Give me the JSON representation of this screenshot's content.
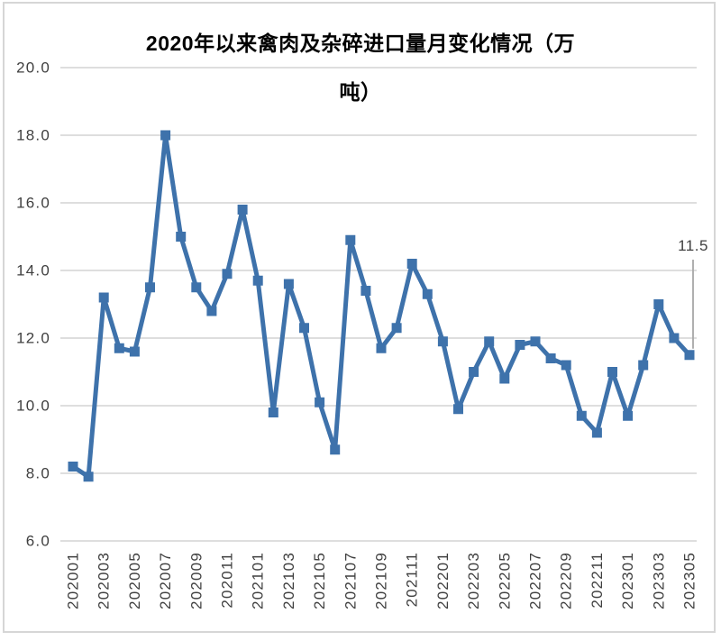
{
  "chart": {
    "title_line1": "2020年以来禽肉及杂碎进口量月变化情况（万",
    "title_line2": "吨）"
  },
  "chart_data": {
    "type": "line",
    "title": "2020年以来禽肉及杂碎进口量月变化情况（万吨）",
    "categories": [
      "202001",
      "202002",
      "202003",
      "202004",
      "202005",
      "202006",
      "202007",
      "202008",
      "202009",
      "202010",
      "202011",
      "202012",
      "202101",
      "202102",
      "202103",
      "202104",
      "202105",
      "202106",
      "202107",
      "202108",
      "202109",
      "202110",
      "202111",
      "202112",
      "202201",
      "202202",
      "202203",
      "202204",
      "202205",
      "202206",
      "202207",
      "202208",
      "202209",
      "202210",
      "202211",
      "202212",
      "202301",
      "202302",
      "202303",
      "202304",
      "202305"
    ],
    "values": [
      8.2,
      7.9,
      13.2,
      11.7,
      11.6,
      13.5,
      18.0,
      15.0,
      13.5,
      12.8,
      13.9,
      15.8,
      13.7,
      9.8,
      13.6,
      12.3,
      10.1,
      8.7,
      14.9,
      13.4,
      11.7,
      12.3,
      14.2,
      13.3,
      11.9,
      9.9,
      11.0,
      11.9,
      10.8,
      11.8,
      11.9,
      11.4,
      11.2,
      9.7,
      9.2,
      11.0,
      9.7,
      11.2,
      13.0,
      12.0,
      11.5
    ],
    "x_tick_step": 2,
    "x_tick_labels": [
      "202001",
      "202003",
      "202005",
      "202007",
      "202009",
      "202011",
      "202101",
      "202103",
      "202105",
      "202107",
      "202109",
      "202111",
      "202201",
      "202203",
      "202205",
      "202207",
      "202209",
      "202211",
      "202301",
      "202303",
      "202305"
    ],
    "ylim": [
      6.0,
      20.0
    ],
    "ytick_step": 2.0,
    "ytick_labels": [
      "20.0",
      "18.0",
      "16.0",
      "14.0",
      "12.0",
      "10.0",
      "8.0",
      "6.0"
    ],
    "grid": true,
    "legend": "none",
    "annotation": {
      "text": "11.5",
      "category": "202305",
      "index": 40
    },
    "colors": {
      "line": "#3E72AB",
      "marker": "#3E72AB",
      "grid": "#D9D9D9",
      "tick_text": "#404040",
      "title_text": "#000000",
      "annotation_line": "#A8A8A8",
      "frame_border": "#D6D6D6"
    }
  }
}
